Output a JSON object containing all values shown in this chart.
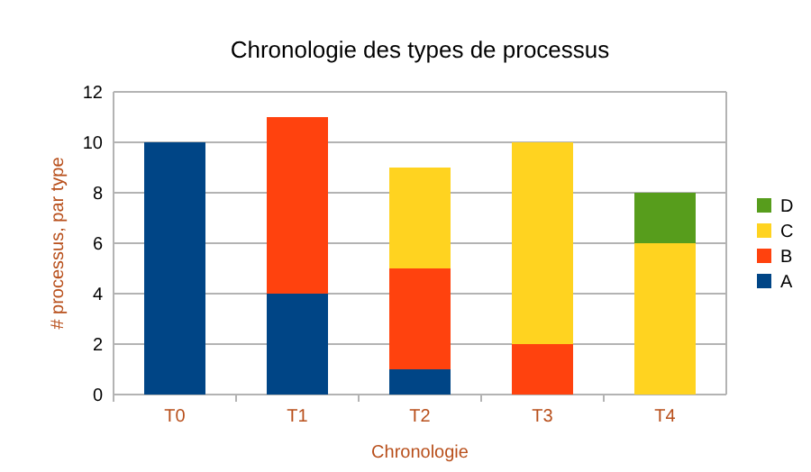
{
  "chart_data": {
    "type": "bar",
    "title": "Chronologie des types de processus",
    "xlabel": "Chronologie",
    "ylabel": "# processus, par type",
    "categories": [
      "T0",
      "T1",
      "T2",
      "T3",
      "T4"
    ],
    "series": [
      {
        "name": "A",
        "color": "#004586",
        "values": [
          10,
          4,
          1,
          0,
          0
        ]
      },
      {
        "name": "B",
        "color": "#ff420e",
        "values": [
          0,
          7,
          4,
          2,
          0
        ]
      },
      {
        "name": "C",
        "color": "#ffd320",
        "values": [
          0,
          0,
          4,
          8,
          6
        ]
      },
      {
        "name": "D",
        "color": "#579d1c",
        "values": [
          0,
          0,
          0,
          0,
          2
        ]
      }
    ],
    "stacked": true,
    "ylim": [
      0,
      12
    ],
    "yticks": [
      0,
      2,
      4,
      6,
      8,
      10,
      12
    ],
    "grid": "y",
    "legend": "right"
  }
}
